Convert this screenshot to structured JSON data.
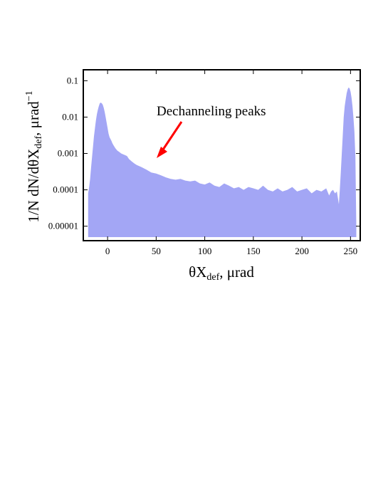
{
  "chart_data": {
    "type": "area",
    "xlabel_parts": [
      "θX",
      "def",
      ", μrad"
    ],
    "ylabel_parts": [
      "1/N dN/dθX",
      "def",
      ", μrad",
      "−1"
    ],
    "annotation": "Dechanneling peaks",
    "x_ticks": [
      {
        "value": 0,
        "label": "0"
      },
      {
        "value": 50,
        "label": "50"
      },
      {
        "value": 100,
        "label": "100"
      },
      {
        "value": 150,
        "label": "150"
      },
      {
        "value": 200,
        "label": "200"
      },
      {
        "value": 250,
        "label": "250"
      }
    ],
    "y_ticks": [
      {
        "value": 0.1,
        "label": "0.1"
      },
      {
        "value": 0.01,
        "label": "0.01"
      },
      {
        "value": 0.001,
        "label": "0.001"
      },
      {
        "value": 0.0001,
        "label": "0.0001"
      },
      {
        "value": 1e-05,
        "label": "0.00001"
      }
    ],
    "xlim": [
      -25,
      260
    ],
    "ylim": [
      4e-06,
      0.2
    ],
    "y_scale": "log",
    "grid": false,
    "fill_color": "#a3a6f5",
    "arrow_color": "#ff0000",
    "series": [
      {
        "x": [
          -20,
          -19,
          -18,
          -17,
          -16,
          -15,
          -14,
          -13,
          -12,
          -11,
          -10,
          -9,
          -8,
          -7,
          -6,
          -5,
          -4,
          -3,
          -2,
          -1,
          0,
          1,
          2,
          3,
          4,
          5,
          6,
          8,
          10,
          12,
          14,
          16,
          18,
          20,
          22,
          25,
          28,
          30,
          35,
          40,
          45,
          50,
          55,
          60,
          65,
          70,
          75,
          80,
          85,
          90,
          95,
          100,
          105,
          110,
          115,
          120,
          125,
          130,
          135,
          140,
          145,
          150,
          155,
          160,
          165,
          170,
          175,
          180,
          185,
          190,
          195,
          200,
          205,
          210,
          215,
          220,
          225,
          228,
          230,
          232,
          234,
          236,
          237,
          238,
          239,
          240,
          241,
          242,
          243,
          244,
          245,
          246,
          247,
          248,
          249,
          250,
          251,
          252,
          253,
          254,
          255,
          256
        ],
        "y": [
          8e-05,
          0.00012,
          0.0002,
          0.0004,
          0.0008,
          0.0015,
          0.003,
          0.005,
          0.008,
          0.012,
          0.016,
          0.02,
          0.024,
          0.025,
          0.024,
          0.022,
          0.018,
          0.014,
          0.01,
          0.007,
          0.005,
          0.0035,
          0.0028,
          0.0025,
          0.0022,
          0.0019,
          0.0017,
          0.0014,
          0.0012,
          0.0011,
          0.001,
          0.00095,
          0.0009,
          0.00085,
          0.0007,
          0.0006,
          0.00052,
          0.00048,
          0.00042,
          0.00036,
          0.0003,
          0.00028,
          0.00025,
          0.00022,
          0.0002,
          0.00019,
          0.0002,
          0.00018,
          0.00017,
          0.00018,
          0.00015,
          0.00014,
          0.00016,
          0.00013,
          0.00012,
          0.00015,
          0.00013,
          0.00011,
          0.00012,
          0.0001,
          0.00012,
          0.00011,
          0.0001,
          0.00013,
          0.0001,
          9e-05,
          0.00011,
          9e-05,
          0.0001,
          0.00012,
          9e-05,
          0.0001,
          0.00011,
          8e-05,
          0.0001,
          9e-05,
          0.00011,
          7e-05,
          9e-05,
          0.0001,
          8e-05,
          9e-05,
          6e-05,
          4e-05,
          0.0001,
          0.0003,
          0.001,
          0.003,
          0.01,
          0.02,
          0.03,
          0.045,
          0.058,
          0.065,
          0.062,
          0.05,
          0.035,
          0.02,
          0.01,
          0.004,
          0.0008,
          1e-05
        ]
      }
    ]
  }
}
